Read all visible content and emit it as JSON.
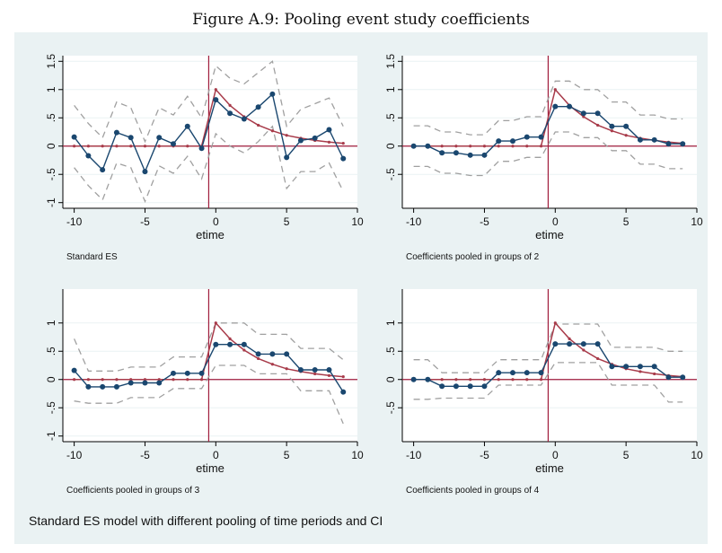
{
  "figure_title": "Figure A.9: Pooling event study coefficients",
  "note": "Standard ES model with different pooling of time periods and CI",
  "colors": {
    "background": "#eaf2f3",
    "plot_bg": "#ffffff",
    "estimate": "#1a476f",
    "truth": "#a83b4a",
    "ci": "#a0a0a0",
    "refline": "#a01c3c"
  },
  "chart_data": [
    {
      "type": "line",
      "subtitle": "Standard ES",
      "xlabel": "etime",
      "ylabel": "",
      "xlim": [
        -10.8,
        10
      ],
      "ylim": [
        -1.1,
        1.6
      ],
      "xticks": [
        -10,
        -5,
        0,
        5,
        10
      ],
      "yticks": [
        -1,
        -0.5,
        0,
        0.5,
        1,
        1.5
      ],
      "ytick_labels": [
        "-1",
        "-.5",
        "0",
        ".5",
        "1",
        "1.5"
      ],
      "event_line_x": -0.5,
      "x": [
        -10,
        -9,
        -8,
        -7,
        -6,
        -5,
        -4,
        -3,
        -2,
        -1,
        0,
        1,
        2,
        3,
        4,
        5,
        6,
        7,
        8,
        9
      ],
      "series": [
        {
          "role": "estimate",
          "values": [
            0.16,
            -0.17,
            -0.42,
            0.24,
            0.15,
            -0.45,
            0.15,
            0.04,
            0.35,
            -0.04,
            0.82,
            0.58,
            0.48,
            0.69,
            0.92,
            -0.2,
            0.1,
            0.14,
            0.29,
            -0.22
          ]
        },
        {
          "role": "truth",
          "values": [
            0,
            0,
            0,
            0,
            0,
            0,
            0,
            0,
            0,
            0,
            1.0,
            0.72,
            0.52,
            0.37,
            0.27,
            0.19,
            0.14,
            0.1,
            0.07,
            0.05
          ]
        },
        {
          "role": "ci_upper",
          "values": [
            0.72,
            0.4,
            0.15,
            0.78,
            0.68,
            0.08,
            0.68,
            0.55,
            0.88,
            0.5,
            1.42,
            1.2,
            1.1,
            1.3,
            1.5,
            0.35,
            0.65,
            0.75,
            0.85,
            0.35
          ]
        },
        {
          "role": "ci_lower",
          "values": [
            -0.38,
            -0.7,
            -0.95,
            -0.3,
            -0.38,
            -0.98,
            -0.35,
            -0.48,
            -0.18,
            -0.58,
            0.22,
            0.0,
            -0.12,
            0.08,
            0.35,
            -0.75,
            -0.45,
            -0.45,
            -0.3,
            -0.8
          ]
        }
      ]
    },
    {
      "type": "line",
      "subtitle": "Coefficients pooled in groups of 2",
      "xlabel": "etime",
      "ylabel": "",
      "xlim": [
        -10.8,
        10
      ],
      "ylim": [
        -1.1,
        1.6
      ],
      "xticks": [
        -10,
        -5,
        0,
        5,
        10
      ],
      "yticks": [
        -0.5,
        0,
        0.5,
        1,
        1.5
      ],
      "ytick_labels": [
        "-.5",
        "0",
        ".5",
        "1",
        "1.5"
      ],
      "event_line_x": -0.5,
      "x": [
        -10,
        -9,
        -8,
        -7,
        -6,
        -5,
        -4,
        -3,
        -2,
        -1,
        0,
        1,
        2,
        3,
        4,
        5,
        6,
        7,
        8,
        9
      ],
      "series": [
        {
          "role": "estimate",
          "values": [
            0.0,
            0.0,
            -0.12,
            -0.12,
            -0.16,
            -0.16,
            0.09,
            0.09,
            0.16,
            0.16,
            0.7,
            0.7,
            0.58,
            0.58,
            0.35,
            0.35,
            0.11,
            0.11,
            0.04,
            0.04
          ]
        },
        {
          "role": "truth",
          "values": [
            0,
            0,
            0,
            0,
            0,
            0,
            0,
            0,
            0,
            0,
            1.0,
            0.72,
            0.52,
            0.37,
            0.27,
            0.19,
            0.14,
            0.1,
            0.07,
            0.05
          ]
        },
        {
          "role": "ci_upper",
          "values": [
            0.36,
            0.36,
            0.25,
            0.25,
            0.2,
            0.2,
            0.45,
            0.45,
            0.52,
            0.52,
            1.15,
            1.15,
            1.0,
            1.0,
            0.78,
            0.78,
            0.55,
            0.55,
            0.48,
            0.48
          ]
        },
        {
          "role": "ci_lower",
          "values": [
            -0.36,
            -0.36,
            -0.48,
            -0.48,
            -0.52,
            -0.52,
            -0.27,
            -0.27,
            -0.2,
            -0.2,
            0.25,
            0.25,
            0.15,
            0.15,
            -0.08,
            -0.08,
            -0.32,
            -0.32,
            -0.4,
            -0.4
          ]
        }
      ]
    },
    {
      "type": "line",
      "subtitle": "Coefficients pooled in groups of 3",
      "xlabel": "etime",
      "ylabel": "",
      "xlim": [
        -10.8,
        10
      ],
      "ylim": [
        -1.1,
        1.6
      ],
      "xticks": [
        -10,
        -5,
        0,
        5,
        10
      ],
      "yticks": [
        -1,
        -0.5,
        0,
        0.5,
        1
      ],
      "ytick_labels": [
        "-1",
        "-.5",
        "0",
        ".5",
        "1"
      ],
      "event_line_x": -0.5,
      "x": [
        -10,
        -9,
        -8,
        -7,
        -6,
        -5,
        -4,
        -3,
        -2,
        -1,
        0,
        1,
        2,
        3,
        4,
        5,
        6,
        7,
        8,
        9
      ],
      "series": [
        {
          "role": "estimate",
          "values": [
            0.16,
            -0.13,
            -0.13,
            -0.13,
            -0.06,
            -0.06,
            -0.06,
            0.11,
            0.11,
            0.11,
            0.62,
            0.62,
            0.62,
            0.45,
            0.45,
            0.45,
            0.17,
            0.17,
            0.17,
            -0.22
          ]
        },
        {
          "role": "truth",
          "values": [
            0,
            0,
            0,
            0,
            0,
            0,
            0,
            0,
            0,
            0,
            1.0,
            0.72,
            0.52,
            0.37,
            0.27,
            0.19,
            0.14,
            0.1,
            0.07,
            0.05
          ]
        },
        {
          "role": "ci_upper",
          "values": [
            0.72,
            0.15,
            0.15,
            0.15,
            0.22,
            0.22,
            0.22,
            0.4,
            0.4,
            0.4,
            1.0,
            1.0,
            1.0,
            0.8,
            0.8,
            0.8,
            0.55,
            0.55,
            0.55,
            0.35
          ]
        },
        {
          "role": "ci_lower",
          "values": [
            -0.38,
            -0.42,
            -0.42,
            -0.42,
            -0.32,
            -0.32,
            -0.32,
            -0.16,
            -0.16,
            -0.16,
            0.25,
            0.25,
            0.25,
            0.1,
            0.1,
            0.1,
            -0.2,
            -0.2,
            -0.2,
            -0.78
          ]
        }
      ]
    },
    {
      "type": "line",
      "subtitle": "Coefficients pooled in groups of 4",
      "xlabel": "etime",
      "ylabel": "",
      "xlim": [
        -10.8,
        10
      ],
      "ylim": [
        -1.1,
        1.6
      ],
      "xticks": [
        -10,
        -5,
        0,
        5,
        10
      ],
      "yticks": [
        -0.5,
        0,
        0.5,
        1
      ],
      "ytick_labels": [
        "-.5",
        "0",
        ".5",
        "1"
      ],
      "event_line_x": -0.5,
      "x": [
        -10,
        -9,
        -8,
        -7,
        -6,
        -5,
        -4,
        -3,
        -2,
        -1,
        0,
        1,
        2,
        3,
        4,
        5,
        6,
        7,
        8,
        9
      ],
      "series": [
        {
          "role": "estimate",
          "values": [
            0.0,
            0.0,
            -0.12,
            -0.12,
            -0.12,
            -0.12,
            0.12,
            0.12,
            0.12,
            0.12,
            0.63,
            0.63,
            0.63,
            0.63,
            0.23,
            0.23,
            0.23,
            0.23,
            0.04,
            0.04
          ]
        },
        {
          "role": "truth",
          "values": [
            0,
            0,
            0,
            0,
            0,
            0,
            0,
            0,
            0,
            0,
            1.0,
            0.72,
            0.52,
            0.37,
            0.27,
            0.19,
            0.14,
            0.1,
            0.07,
            0.05
          ]
        },
        {
          "role": "ci_upper",
          "values": [
            0.35,
            0.35,
            0.12,
            0.12,
            0.12,
            0.12,
            0.35,
            0.35,
            0.35,
            0.35,
            0.98,
            0.98,
            0.98,
            0.98,
            0.57,
            0.57,
            0.57,
            0.57,
            0.5,
            0.5
          ]
        },
        {
          "role": "ci_lower",
          "values": [
            -0.35,
            -0.35,
            -0.33,
            -0.33,
            -0.33,
            -0.33,
            -0.1,
            -0.1,
            -0.1,
            -0.1,
            0.3,
            0.3,
            0.3,
            0.3,
            -0.1,
            -0.1,
            -0.1,
            -0.1,
            -0.4,
            -0.4
          ]
        }
      ]
    }
  ]
}
